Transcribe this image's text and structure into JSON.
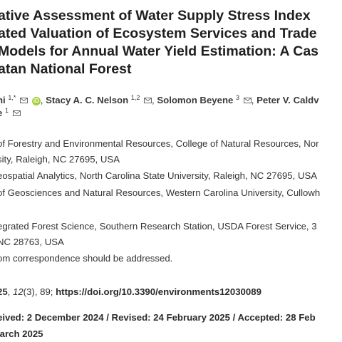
{
  "title": {
    "line1": "ative Assessment of Water Supply Stress Index",
    "line2": "ated Valuation of Ecosystem Services and Trade",
    "line3": "Models for Annual Water Yield Estimation: A Cas",
    "line4": "atan National Forest"
  },
  "authors": {
    "a1_name": "hi",
    "a1_sup": "1,*",
    "a2_name": "Stacy A. C. Nelson",
    "a2_sup": "1,2",
    "a3_name": "Solomon Beyene",
    "a3_sup": "3",
    "a4_name": "Peter V. Caldv",
    "line2_name": "e",
    "line2_sup": "1",
    "comma": ","
  },
  "affiliations": [
    {
      "text": "of Forestry and Environmental Resources, College of Natural Resources, Nor"
    },
    {
      "text": "sity, Raleigh, NC 27695, USA"
    },
    {
      "text": "eospatial Analytics, North Carolina State University, Raleigh, NC 27695, USA"
    },
    {
      "text": "of Geosciences and Natural Resources, Western Carolina University, Cullowh"
    },
    {
      "text": "egrated Forest Science, Southern Research Station, USDA Forest Service, 3"
    },
    {
      "text": "NC 28763, USA"
    },
    {
      "text": "om correspondence should be addressed."
    }
  ],
  "citation": {
    "year": "25",
    "volume": "12",
    "issue": "(3), 89;",
    "doi": "https://doi.org/10.3390/environments12030089"
  },
  "dates": {
    "line1": "eived: 2 December 2024 / Revised: 24 February 2025 / Accepted: 28 Feb",
    "line2": "larch 2025"
  },
  "icons": {
    "mail": "envelope-icon",
    "orcid": "orcid-icon",
    "orcid_color": "#a6ce39"
  }
}
